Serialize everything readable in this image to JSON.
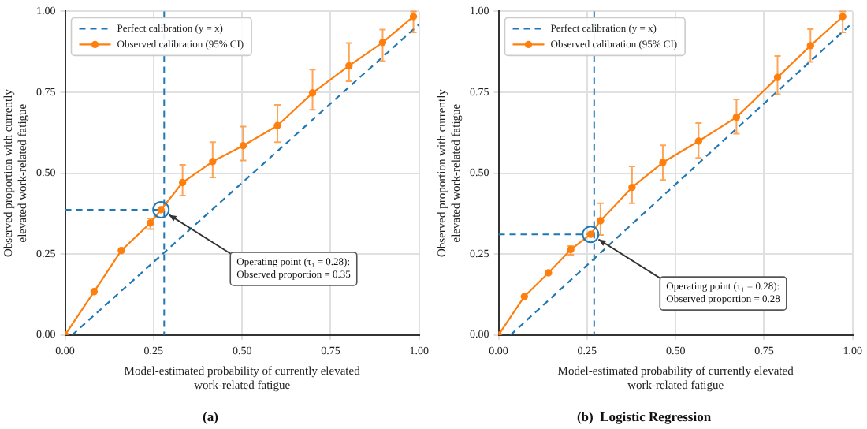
{
  "chart_data": [
    {
      "type": "line",
      "title": "(a)",
      "xlabel": "Model-estimated probability of currently elevated\nwork-related fatigue",
      "ylabel": "Observed proportion with currently\nelevated work-related fatigue",
      "xlim": [
        0,
        1
      ],
      "ylim": [
        0,
        1
      ],
      "xticks": [
        {
          "value": 0,
          "label": "0.00"
        },
        {
          "value": 0.25,
          "label": "0.25"
        },
        {
          "value": 0.5,
          "label": "0.50"
        },
        {
          "value": 0.75,
          "label": "0.75"
        },
        {
          "value": 1,
          "label": "1.00"
        }
      ],
      "yticks": [
        {
          "value": 0,
          "label": "0.00"
        },
        {
          "value": 0.25,
          "label": "0.25"
        },
        {
          "value": 0.5,
          "label": "0.50"
        },
        {
          "value": 0.75,
          "label": "0.75"
        },
        {
          "value": 1,
          "label": "1.00"
        }
      ],
      "grid": true,
      "legend": "top left",
      "series": [
        {
          "name": "Perfect calibration (y = x)",
          "color": "#1f77b4",
          "line_style": "dashed",
          "marker": "none",
          "x": [
            0.02,
            1
          ],
          "values": [
            0,
            0.96
          ]
        },
        {
          "name": "Observed calibration (95% CI)",
          "color": "#ff7f0e",
          "line_style": "solid",
          "marker": "circle",
          "x": [
            0,
            0.082,
            0.159,
            0.241,
            0.271,
            0.332,
            0.417,
            0.503,
            0.6,
            0.699,
            0.802,
            0.897,
            0.984
          ],
          "values": [
            0,
            0.134,
            0.261,
            0.346,
            0.387,
            0.471,
            0.536,
            0.585,
            0.647,
            0.748,
            0.832,
            0.904,
            0.984
          ],
          "errors": [
            null,
            null,
            null,
            [
              0.327,
              0.36
            ],
            null,
            [
              0.431,
              0.526
            ],
            [
              0.487,
              0.596
            ],
            [
              0.539,
              0.644
            ],
            [
              0.596,
              0.711
            ],
            [
              0.696,
              0.82
            ],
            [
              0.784,
              0.902
            ],
            [
              0.846,
              0.944
            ],
            [
              0.935,
              1.0
            ]
          ]
        }
      ],
      "ref_lines": [
        {
          "axis": "x",
          "value": 0.28,
          "color": "#1f77b4",
          "line_style": "dashed"
        },
        {
          "axis": "y",
          "value": 0.387,
          "color": "#1f77b4",
          "line_style": "dashed"
        }
      ],
      "annotations": [
        {
          "text": "Operating point (τ₁ = 0.28):\nObserved proportion = 0.35",
          "x": 0.271,
          "y": 0.387
        }
      ]
    },
    {
      "type": "line",
      "title": "(b)  Logistic Regression",
      "xlabel": "Model-estimated probability of currently elevated\nwork-related fatigue",
      "ylabel": "Observed proportion with currently\nelevated work-related fatigue",
      "xlim": [
        0,
        1
      ],
      "ylim": [
        0,
        1
      ],
      "xticks": [
        {
          "value": 0,
          "label": "0.00"
        },
        {
          "value": 0.25,
          "label": "0.25"
        },
        {
          "value": 0.5,
          "label": "0.50"
        },
        {
          "value": 0.75,
          "label": "0.75"
        },
        {
          "value": 1,
          "label": "1.00"
        }
      ],
      "yticks": [
        {
          "value": 0,
          "label": "0.00"
        },
        {
          "value": 0.25,
          "label": "0.25"
        },
        {
          "value": 0.5,
          "label": "0.50"
        },
        {
          "value": 0.75,
          "label": "0.75"
        },
        {
          "value": 1,
          "label": "1.00"
        }
      ],
      "grid": true,
      "legend": "top left",
      "series": [
        {
          "name": "Perfect calibration (y = x)",
          "color": "#1f77b4",
          "line_style": "dashed",
          "marker": "none",
          "x": [
            0.034,
            1
          ],
          "values": [
            0,
            0.965
          ]
        },
        {
          "name": "Observed calibration (95% CI)",
          "color": "#ff7f0e",
          "line_style": "solid",
          "marker": "circle",
          "x": [
            0,
            0.073,
            0.141,
            0.204,
            0.26,
            0.288,
            0.377,
            0.464,
            0.565,
            0.672,
            0.788,
            0.881,
            0.972
          ],
          "values": [
            0,
            0.119,
            0.192,
            0.264,
            0.311,
            0.353,
            0.456,
            0.533,
            0.599,
            0.673,
            0.796,
            0.894,
            0.984
          ],
          "errors": [
            null,
            null,
            null,
            [
              0.248,
              0.275
            ],
            null,
            [
              0.309,
              0.407
            ],
            [
              0.407,
              0.521
            ],
            [
              0.479,
              0.586
            ],
            [
              0.547,
              0.655
            ],
            [
              0.622,
              0.728
            ],
            [
              0.744,
              0.862
            ],
            [
              0.844,
              0.945
            ],
            [
              0.935,
              1.0
            ]
          ]
        }
      ],
      "ref_lines": [
        {
          "axis": "x",
          "value": 0.27,
          "color": "#1f77b4",
          "line_style": "dashed"
        },
        {
          "axis": "y",
          "value": 0.311,
          "color": "#1f77b4",
          "line_style": "dashed"
        }
      ],
      "annotations": [
        {
          "text": "Operating point (τ₁ = 0.28):\nObserved proportion = 0.28",
          "x": 0.26,
          "y": 0.311
        }
      ]
    }
  ]
}
